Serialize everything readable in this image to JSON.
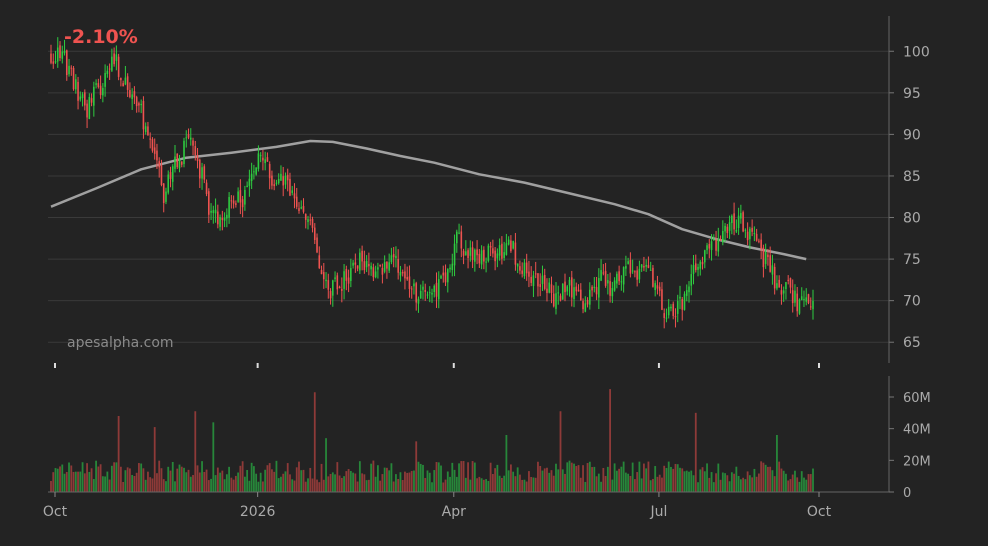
{
  "chart_data": {
    "type": "candlestick",
    "performance": "-2.10%",
    "watermark": "apesalpha.com",
    "colors": {
      "up": "#2ecc40",
      "down": "#ef5350",
      "ma": "#a0a0a0",
      "grid": "#3a3a3a",
      "text": "#aaaaaa",
      "background": "#232323"
    },
    "x_tick_labels": [
      "Oct",
      "2026",
      "Apr",
      "Jul",
      "Oct"
    ],
    "price_axis": {
      "ticks": [
        65,
        70,
        75,
        80,
        85,
        90,
        95,
        100
      ],
      "range": [
        62.5,
        104
      ],
      "position": "right",
      "grid": true
    },
    "volume_axis": {
      "ticks": [
        0,
        20000000,
        40000000,
        60000000
      ],
      "tick_labels": [
        "0",
        "20M",
        "40M",
        "60M"
      ],
      "range": [
        0,
        72000000
      ],
      "position": "right"
    },
    "price_waypoints": [
      [
        0,
        99.5
      ],
      [
        6,
        99
      ],
      [
        10,
        96
      ],
      [
        16,
        93
      ],
      [
        22,
        96
      ],
      [
        28,
        99
      ],
      [
        32,
        97
      ],
      [
        38,
        94
      ],
      [
        42,
        91
      ],
      [
        46,
        87
      ],
      [
        50,
        83
      ],
      [
        54,
        86
      ],
      [
        58,
        87.5
      ],
      [
        62,
        90
      ],
      [
        66,
        86
      ],
      [
        70,
        81
      ],
      [
        74,
        80
      ],
      [
        78,
        81
      ],
      [
        84,
        82
      ],
      [
        88,
        84
      ],
      [
        92,
        87.5
      ],
      [
        98,
        85
      ],
      [
        104,
        84
      ],
      [
        110,
        82
      ],
      [
        116,
        78
      ],
      [
        120,
        74
      ],
      [
        124,
        71.5
      ],
      [
        128,
        72
      ],
      [
        134,
        74
      ],
      [
        138,
        75
      ],
      [
        142,
        74
      ],
      [
        148,
        73.5
      ],
      [
        152,
        75
      ],
      [
        156,
        74
      ],
      [
        160,
        71
      ],
      [
        164,
        70.5
      ],
      [
        168,
        71
      ],
      [
        172,
        71.5
      ],
      [
        176,
        74
      ],
      [
        180,
        77
      ],
      [
        184,
        76.5
      ],
      [
        190,
        75.5
      ],
      [
        194,
        76
      ],
      [
        198,
        75
      ],
      [
        202,
        77
      ],
      [
        206,
        75.5
      ],
      [
        210,
        74
      ],
      [
        214,
        73
      ],
      [
        220,
        72
      ],
      [
        224,
        70
      ],
      [
        228,
        72
      ],
      [
        232,
        71
      ],
      [
        236,
        69
      ],
      [
        240,
        71
      ],
      [
        244,
        73
      ],
      [
        248,
        71
      ],
      [
        254,
        73.5
      ],
      [
        258,
        74
      ],
      [
        262,
        73.5
      ],
      [
        266,
        72.5
      ],
      [
        270,
        70
      ],
      [
        274,
        68
      ],
      [
        278,
        69
      ],
      [
        282,
        70.5
      ],
      [
        286,
        74
      ],
      [
        290,
        76
      ],
      [
        294,
        76.5
      ],
      [
        298,
        78
      ],
      [
        302,
        79
      ],
      [
        306,
        80
      ],
      [
        310,
        78
      ],
      [
        314,
        76
      ],
      [
        318,
        74.5
      ],
      [
        322,
        72
      ],
      [
        326,
        71.5
      ],
      [
        330,
        70
      ],
      [
        334,
        69.5
      ],
      [
        338,
        69
      ]
    ],
    "ma_waypoints": [
      [
        0,
        81.3
      ],
      [
        20,
        83.5
      ],
      [
        40,
        85.8
      ],
      [
        60,
        87.2
      ],
      [
        80,
        87.8
      ],
      [
        100,
        88.5
      ],
      [
        115,
        89.2
      ],
      [
        125,
        89.1
      ],
      [
        140,
        88.3
      ],
      [
        155,
        87.4
      ],
      [
        170,
        86.6
      ],
      [
        190,
        85.2
      ],
      [
        210,
        84.2
      ],
      [
        230,
        82.9
      ],
      [
        250,
        81.6
      ],
      [
        265,
        80.4
      ],
      [
        280,
        78.6
      ],
      [
        295,
        77.4
      ],
      [
        310,
        76.4
      ],
      [
        325,
        75.6
      ],
      [
        335,
        75.0
      ]
    ],
    "volume_spikes": [
      [
        30,
        48
      ],
      [
        46,
        41
      ],
      [
        64,
        51
      ],
      [
        72,
        44
      ],
      [
        117,
        63
      ],
      [
        122,
        34
      ],
      [
        162,
        32
      ],
      [
        202,
        36
      ],
      [
        226,
        51
      ],
      [
        248,
        65
      ],
      [
        286,
        50
      ],
      [
        322,
        36
      ]
    ]
  }
}
